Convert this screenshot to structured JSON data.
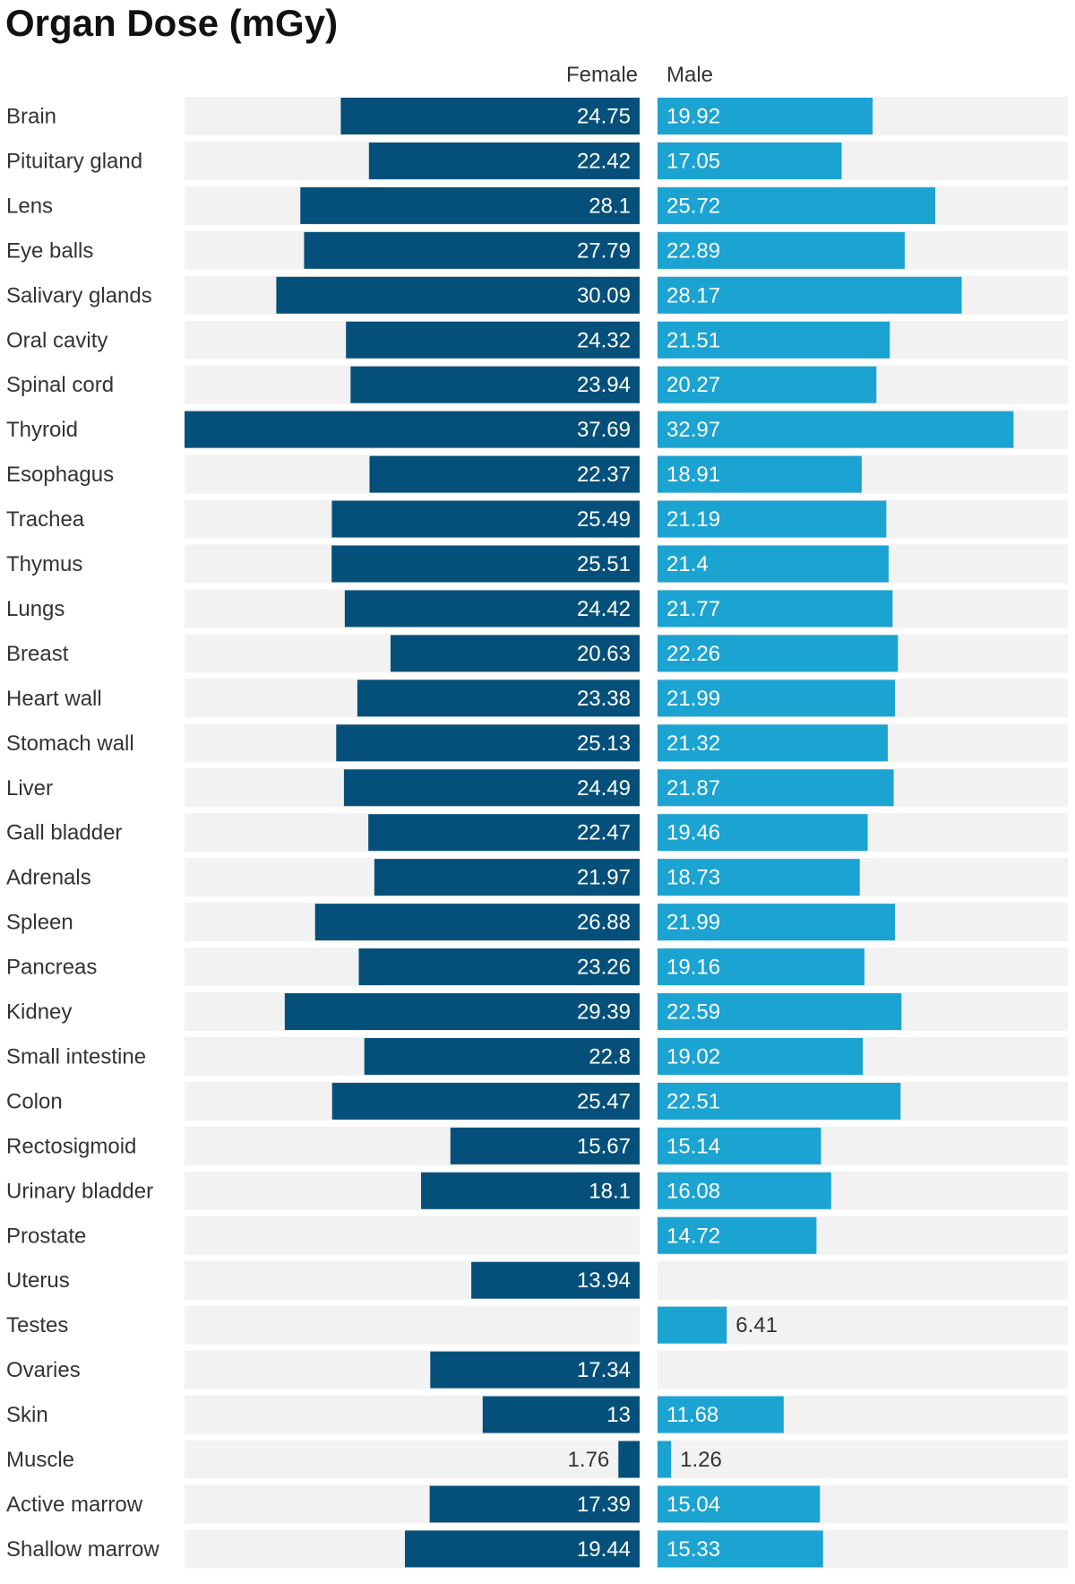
{
  "chart_data": {
    "type": "bar",
    "title": "Organ Dose (mGy)",
    "orientation": "horizontal-split",
    "series": [
      {
        "name": "Female",
        "color": "#05507a",
        "values": [
          24.75,
          22.42,
          28.1,
          27.79,
          30.09,
          24.32,
          23.94,
          37.69,
          22.37,
          25.49,
          25.51,
          24.42,
          20.63,
          23.38,
          25.13,
          24.49,
          22.47,
          21.97,
          26.88,
          23.26,
          29.39,
          22.8,
          25.47,
          15.67,
          18.1,
          null,
          13.94,
          null,
          17.34,
          13,
          1.76,
          17.39,
          19.44
        ]
      },
      {
        "name": "Male",
        "color": "#1ba3d2",
        "values": [
          19.92,
          17.05,
          25.72,
          22.89,
          28.17,
          21.51,
          20.27,
          32.97,
          18.91,
          21.19,
          21.4,
          21.77,
          22.26,
          21.99,
          21.32,
          21.87,
          19.46,
          18.73,
          21.99,
          19.16,
          22.59,
          19.02,
          22.51,
          15.14,
          16.08,
          14.72,
          null,
          6.41,
          null,
          11.68,
          1.26,
          15.04,
          15.33
        ]
      }
    ],
    "categories": [
      "Brain",
      "Pituitary gland",
      "Lens",
      "Eye balls",
      "Salivary glands",
      "Oral cavity",
      "Spinal cord",
      "Thyroid",
      "Esophagus",
      "Trachea",
      "Thymus",
      "Lungs",
      "Breast",
      "Heart wall",
      "Stomach wall",
      "Liver",
      "Gall bladder",
      "Adrenals",
      "Spleen",
      "Pancreas",
      "Kidney",
      "Small intestine",
      "Colon",
      "Rectosigmoid",
      "Urinary bladder",
      "Prostate",
      "Uterus",
      "Testes",
      "Ovaries",
      "Skin",
      "Muscle",
      "Active marrow",
      "Shallow marrow"
    ],
    "female_max": 37.69,
    "male_max": 38.0,
    "xlabel": "",
    "ylabel": "",
    "legend": "top-center",
    "grid": false
  }
}
